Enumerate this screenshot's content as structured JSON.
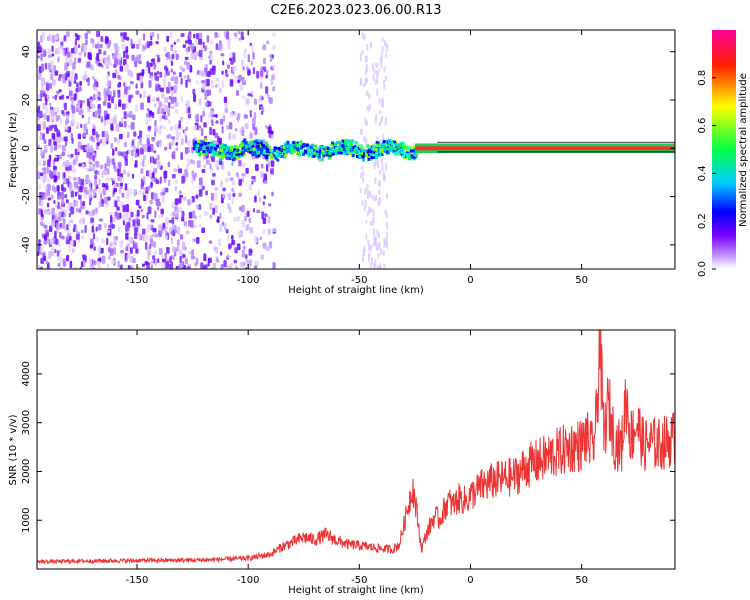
{
  "title": "C2E6.2023.023.06.00.R13",
  "chart_data": [
    {
      "type": "heatmap",
      "xlabel": "Height of straight line (km)",
      "ylabel": "Frequency (Hz)",
      "xlim": [
        -195,
        92
      ],
      "ylim": [
        -50,
        49
      ],
      "x_ticks": [
        -150,
        -100,
        -50,
        0,
        50
      ],
      "y_ticks": [
        -40,
        -20,
        0,
        20,
        40
      ],
      "colorbar": {
        "label": "Normalized spectral amplitude",
        "range": [
          0.0,
          1.0
        ],
        "ticks": [
          0.0,
          0.2,
          0.4,
          0.6,
          0.8
        ],
        "colors": [
          "#ffffff",
          "#9b30ff",
          "#0000ff",
          "#00ffff",
          "#00ff00",
          "#ffff00",
          "#ff0000",
          "#ff00aa"
        ]
      },
      "regions": [
        {
          "x_range": [
            -195,
            -90
          ],
          "amplitude": 0.1,
          "note": "broadband noise"
        },
        {
          "x_range": [
            -125,
            -25
          ],
          "amplitude": 0.35,
          "freq_center": 0,
          "note": "noisy carrier"
        },
        {
          "x_range": [
            -25,
            92
          ],
          "amplitude": 0.95,
          "freq_center": 0,
          "note": "strong narrow carrier"
        }
      ]
    },
    {
      "type": "line",
      "xlabel": "Height of straight line (km)",
      "ylabel": "SNR (10 * v/v)",
      "xlim": [
        -195,
        92
      ],
      "ylim": [
        0,
        4900
      ],
      "x_ticks": [
        -150,
        -100,
        -50,
        0,
        50
      ],
      "y_ticks": [
        1000,
        2000,
        3000,
        4000
      ],
      "color": "#ee3333",
      "series": [
        {
          "x": [
            -195,
            -180,
            -160,
            -140,
            -120,
            -100,
            -90,
            -85,
            -80,
            -75,
            -70,
            -65,
            -60,
            -55,
            -50,
            -45,
            -40,
            -35,
            -32,
            -30,
            -28,
            -26,
            -24,
            -22,
            -20,
            -18,
            -16,
            -14,
            -12,
            -10,
            -8,
            -5,
            -2,
            0,
            5,
            10,
            15,
            20,
            25,
            30,
            35,
            40,
            45,
            50,
            52,
            55,
            57,
            58,
            60,
            62,
            65,
            68,
            70,
            72,
            75,
            78,
            80,
            85,
            90,
            92
          ],
          "y": [
            150,
            160,
            170,
            175,
            185,
            220,
            300,
            450,
            550,
            650,
            600,
            700,
            580,
            500,
            480,
            450,
            420,
            400,
            500,
            900,
            1300,
            1700,
            1100,
            400,
            700,
            900,
            1100,
            1000,
            1200,
            1400,
            1300,
            1450,
            1400,
            1500,
            1700,
            1800,
            1850,
            1900,
            2100,
            2200,
            2300,
            2400,
            2500,
            2550,
            2700,
            2450,
            3200,
            4900,
            2700,
            3400,
            2600,
            2500,
            3600,
            2700,
            3000,
            2500,
            2600,
            2550,
            2650,
            2700
          ]
        }
      ]
    }
  ]
}
